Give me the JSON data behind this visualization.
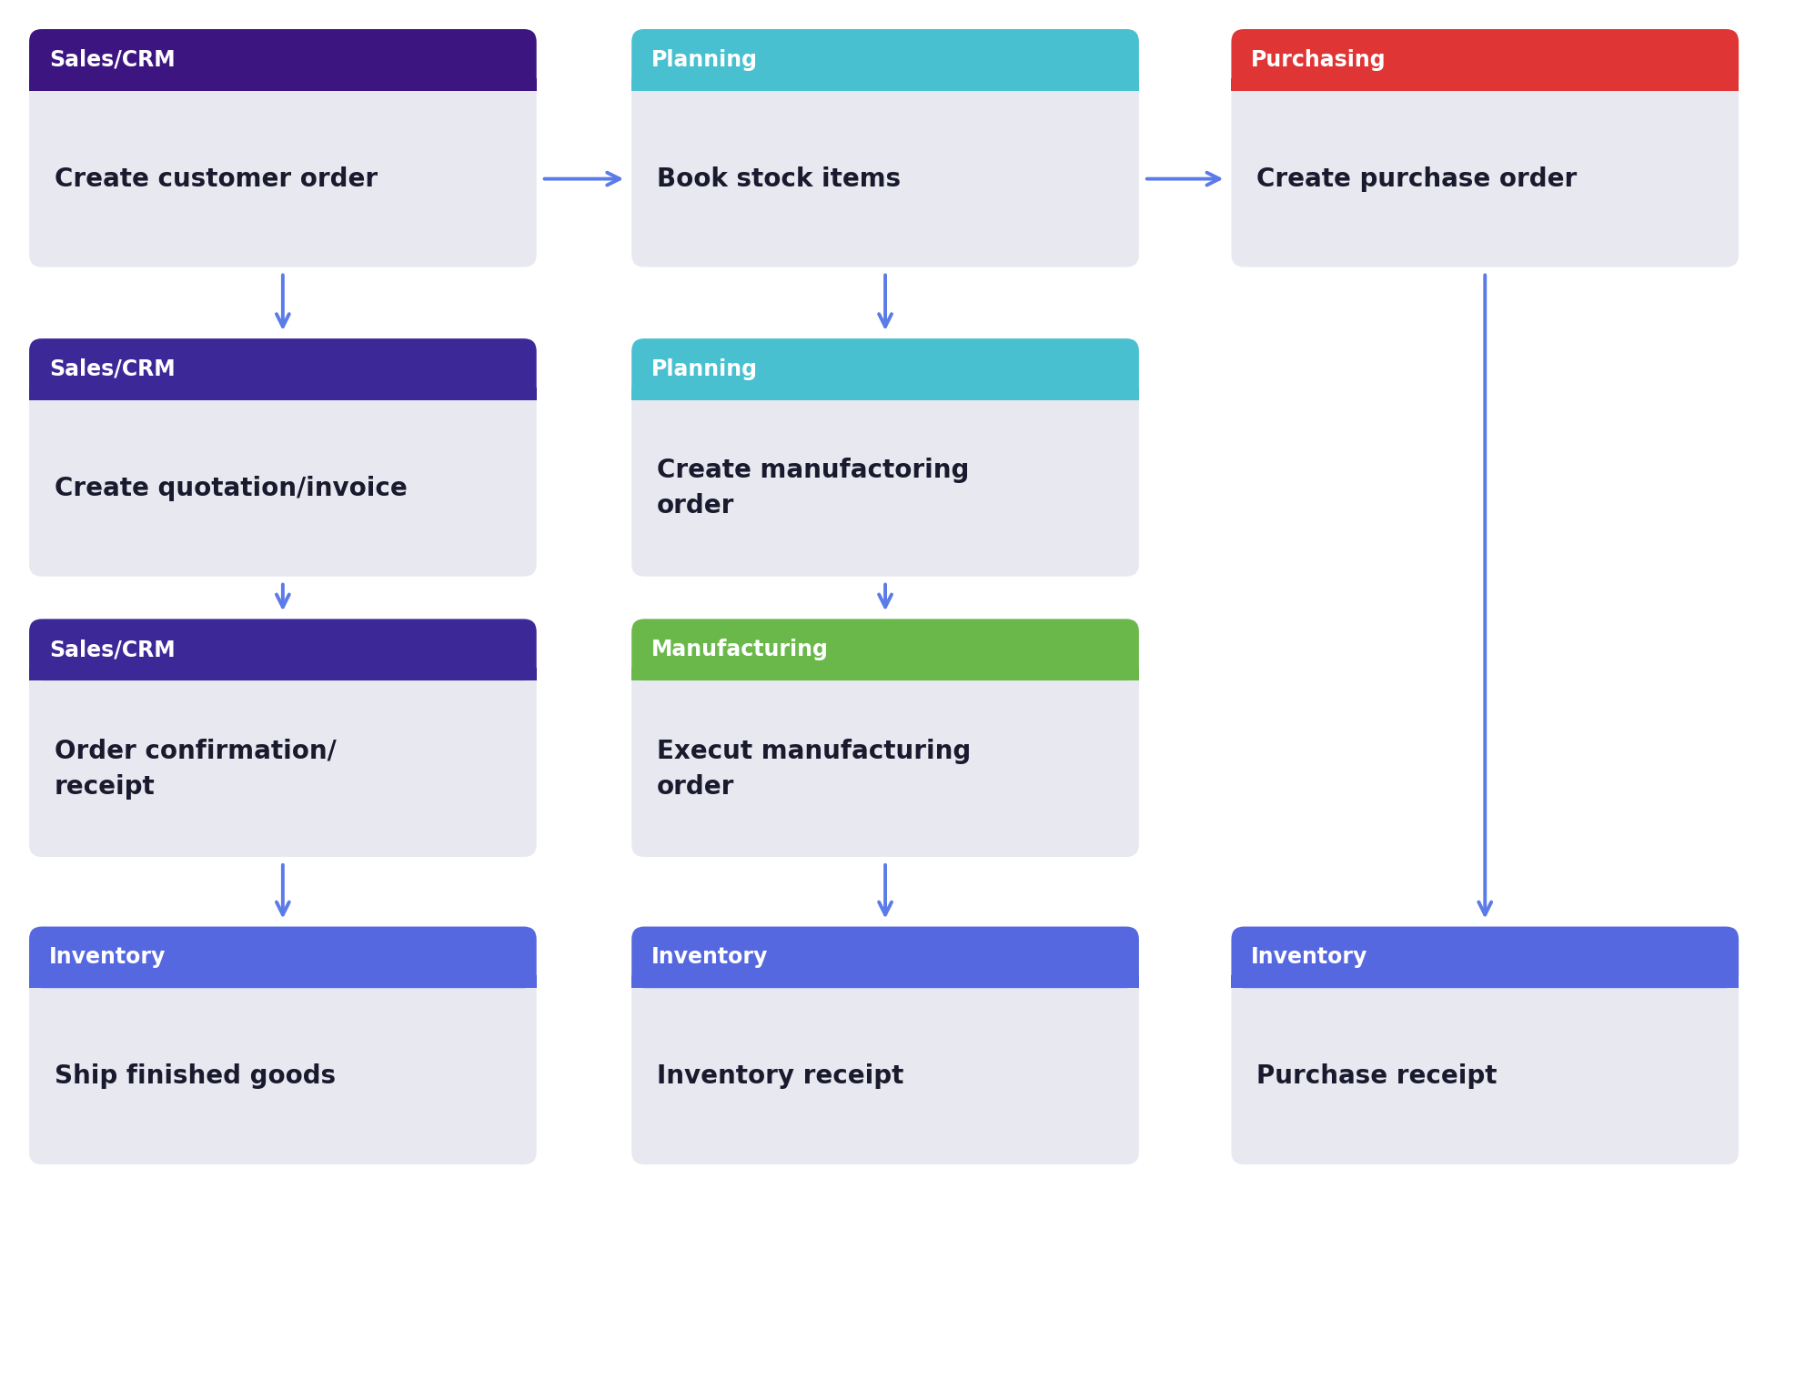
{
  "bg_color": "#ffffff",
  "box_bg": "#e8e8f0",
  "arrow_color": "#5b7be8",
  "boxes": [
    {
      "col": 0,
      "row": 0,
      "header_text": "Sales/CRM",
      "header_color": "#3d1580",
      "body_text": "Create customer order",
      "text_color": "#1a1a2e"
    },
    {
      "col": 1,
      "row": 0,
      "header_text": "Planning",
      "header_color": "#48c0d0",
      "body_text": "Book stock items",
      "text_color": "#1a1a2e"
    },
    {
      "col": 2,
      "row": 0,
      "header_text": "Purchasing",
      "header_color": "#e03535",
      "body_text": "Create purchase order",
      "text_color": "#1a1a2e"
    },
    {
      "col": 0,
      "row": 1,
      "header_text": "Sales/CRM",
      "header_color": "#3d2898",
      "body_text": "Create quotation/invoice",
      "text_color": "#1a1a2e"
    },
    {
      "col": 1,
      "row": 1,
      "header_text": "Planning",
      "header_color": "#48c0d0",
      "body_text": "Create manufactoring\norder",
      "text_color": "#1a1a2e"
    },
    {
      "col": 0,
      "row": 2,
      "header_text": "Sales/CRM",
      "header_color": "#3d2898",
      "body_text": "Order confirmation/\nreceipt",
      "text_color": "#1a1a2e"
    },
    {
      "col": 1,
      "row": 2,
      "header_text": "Manufacturing",
      "header_color": "#6ab84a",
      "body_text": "Execut manufacturing\norder",
      "text_color": "#1a1a2e"
    },
    {
      "col": 0,
      "row": 3,
      "header_text": "Inventory",
      "header_color": "#5568e0",
      "body_text": "Ship finished goods",
      "text_color": "#1a1a2e"
    },
    {
      "col": 1,
      "row": 3,
      "header_text": "Inventory",
      "header_color": "#5568e0",
      "body_text": "Inventory receipt",
      "text_color": "#1a1a2e"
    },
    {
      "col": 2,
      "row": 3,
      "header_text": "Inventory",
      "header_color": "#5568e0",
      "body_text": "Purchase receipt",
      "text_color": "#1a1a2e"
    }
  ],
  "h_arrows": [
    {
      "from_col": 0,
      "from_row": 0,
      "to_col": 1,
      "to_row": 0
    },
    {
      "from_col": 1,
      "from_row": 0,
      "to_col": 2,
      "to_row": 0
    }
  ],
  "v_arrows": [
    {
      "col": 0,
      "from_row": 0,
      "to_row": 1
    },
    {
      "col": 0,
      "from_row": 1,
      "to_row": 2
    },
    {
      "col": 0,
      "from_row": 2,
      "to_row": 3
    },
    {
      "col": 1,
      "from_row": 0,
      "to_row": 1
    },
    {
      "col": 1,
      "from_row": 1,
      "to_row": 2
    },
    {
      "col": 1,
      "from_row": 2,
      "to_row": 3
    },
    {
      "col": 2,
      "from_row": 0,
      "to_row": 3
    }
  ]
}
